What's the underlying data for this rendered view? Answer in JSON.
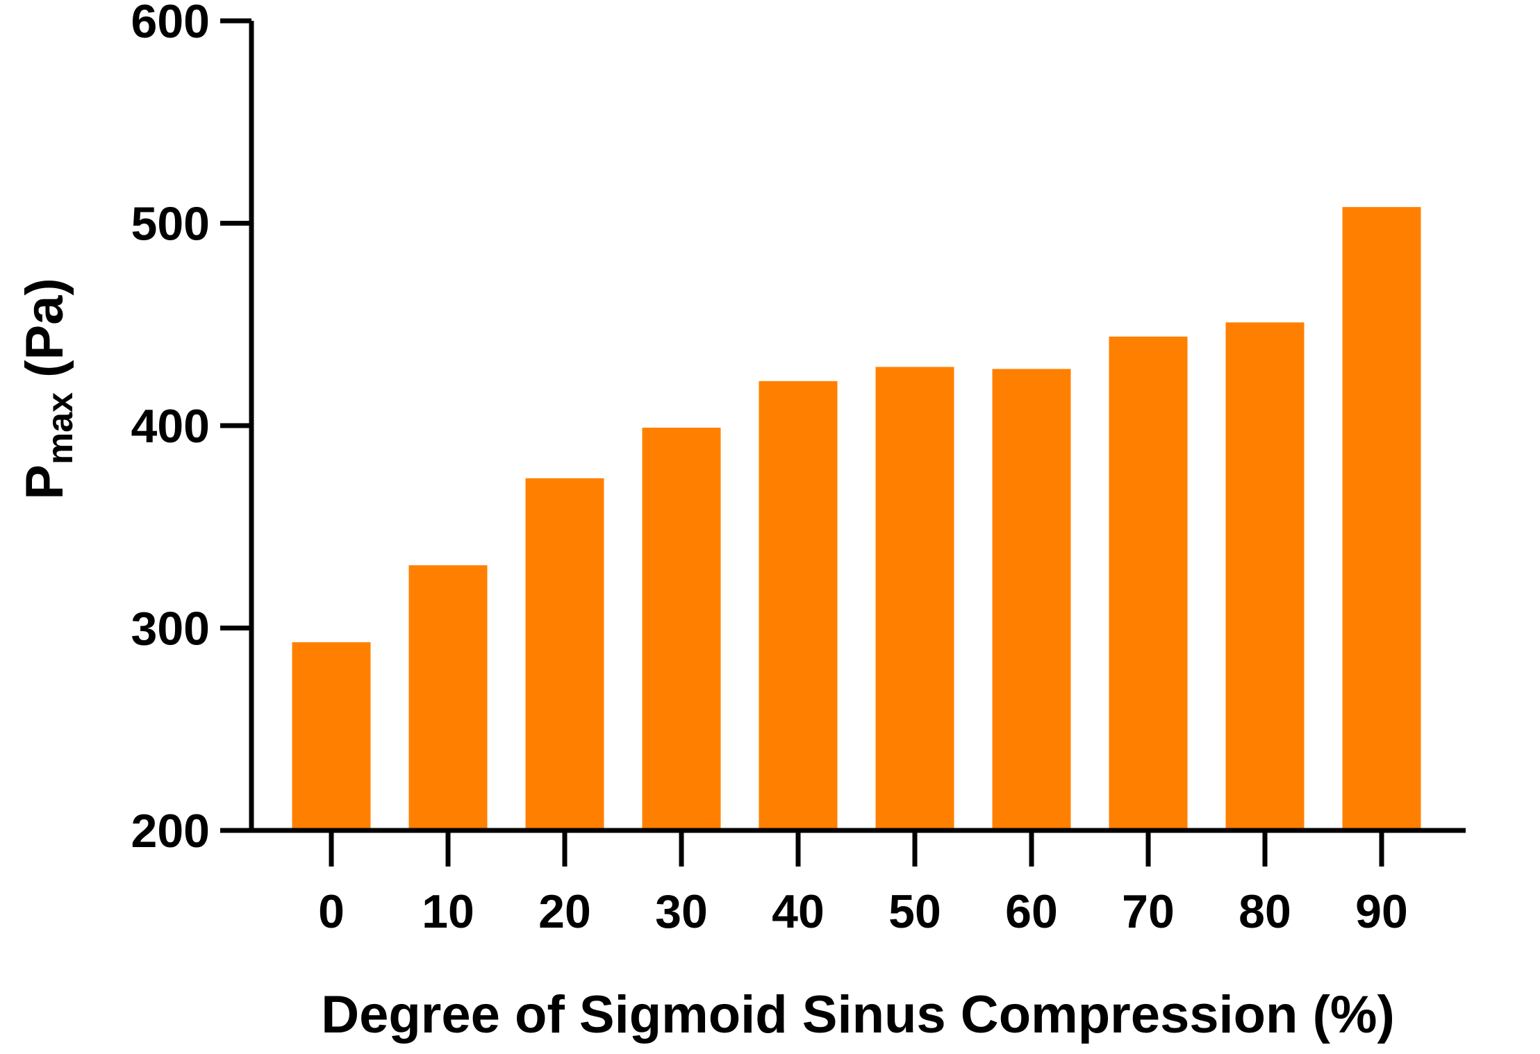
{
  "chart_data": {
    "type": "bar",
    "categories": [
      "0",
      "10",
      "20",
      "30",
      "40",
      "50",
      "60",
      "70",
      "80",
      "90"
    ],
    "values": [
      293,
      331,
      374,
      399,
      422,
      429,
      428,
      444,
      451,
      508
    ],
    "xlabel": "Degree of Sigmoid Sinus Compression (%)",
    "ylabel_main": "P",
    "ylabel_sub": "max",
    "ylabel_unit": " (Pa)",
    "ylim": [
      200,
      600
    ],
    "yticks": [
      200,
      300,
      400,
      500,
      600
    ],
    "grid": false,
    "legend": "none",
    "bar_color": "#FF8000"
  }
}
